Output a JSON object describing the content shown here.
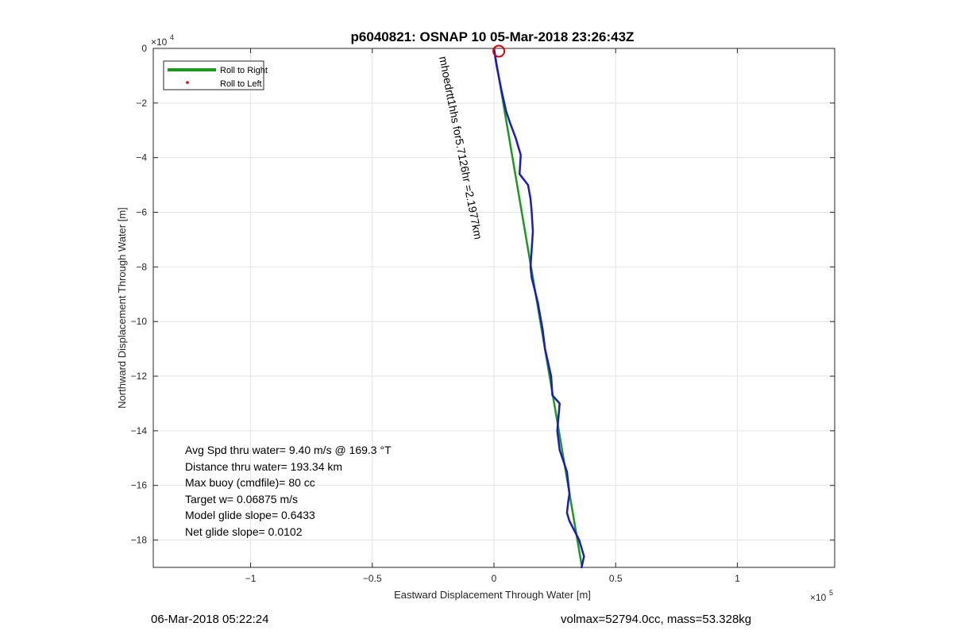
{
  "chart_data": {
    "type": "line",
    "title": "p6040821: OSNAP 10 05-Mar-2018 23:26:43Z",
    "xlabel": "Eastward Displacement Through Water [m]",
    "ylabel": "Northward Displacement Through Water [m]",
    "x_exponent_label": "×10",
    "x_exponent": "5",
    "y_exponent_label": "×10",
    "y_exponent": "4",
    "xlim": [
      -1.4,
      1.4
    ],
    "ylim": [
      -19,
      0
    ],
    "xticks": [
      -1,
      -0.5,
      0,
      0.5,
      1
    ],
    "xtick_labels": [
      "−1",
      "−0.5",
      "0",
      "0.5",
      "1"
    ],
    "yticks": [
      0,
      -2,
      -4,
      -6,
      -8,
      -10,
      -12,
      -14,
      -16,
      -18
    ],
    "ytick_labels": [
      "0",
      "−2",
      "−4",
      "−6",
      "−8",
      "−10",
      "−12",
      "−14",
      "−16",
      "−18"
    ],
    "grid": true,
    "legend_position": "top-left",
    "legend": [
      {
        "name": "Roll to Right",
        "color": "#1a9a1a",
        "style": "line"
      },
      {
        "name": "Roll to Left",
        "color": "#e00000",
        "style": "dot"
      }
    ],
    "series": [
      {
        "name": "model-track",
        "color": "#1a9a1a",
        "x": [
          0,
          0.36
        ],
        "y": [
          0,
          -18.9
        ]
      },
      {
        "name": "track",
        "color": "#1a1aca",
        "x": [
          0.0,
          0.01,
          0.03,
          0.05,
          0.065,
          0.09,
          0.1,
          0.11,
          0.105,
          0.14,
          0.15,
          0.155,
          0.16,
          0.15,
          0.155,
          0.18,
          0.2,
          0.21,
          0.235,
          0.24,
          0.27,
          0.26,
          0.27,
          0.3,
          0.31,
          0.305,
          0.3,
          0.31,
          0.35,
          0.37,
          0.36
        ],
        "y": [
          0,
          -0.6,
          -1.5,
          -2.3,
          -2.7,
          -3.3,
          -3.6,
          -3.9,
          -4.6,
          -5.0,
          -5.5,
          -6.0,
          -6.7,
          -8.0,
          -8.4,
          -9.3,
          -10.3,
          -11.0,
          -12.0,
          -12.7,
          -13.0,
          -14.0,
          -14.7,
          -15.5,
          -16.3,
          -16.6,
          -17.0,
          -17.3,
          -18.0,
          -18.6,
          -19.0
        ]
      }
    ],
    "annotations": [
      {
        "text": "Avg Spd thru water=  9.40 m/s @ 169.3 °T"
      },
      {
        "text": "Distance thru water= 193.34 km"
      },
      {
        "text": "Max buoy (cmdfile)= 80 cc"
      },
      {
        "text": "Target w= 0.06875 m/s"
      },
      {
        "text": "Model glide slope= 0.6433"
      },
      {
        "text": "Net glide slope= 0.0102"
      }
    ],
    "rotated_label": "mhoedrtt1hhs for5.7126hr =2.1977km"
  },
  "footer": {
    "left": "06-Mar-2018 05:22:24",
    "right": "volmax=52794.0cc, mass=53.328kg"
  }
}
